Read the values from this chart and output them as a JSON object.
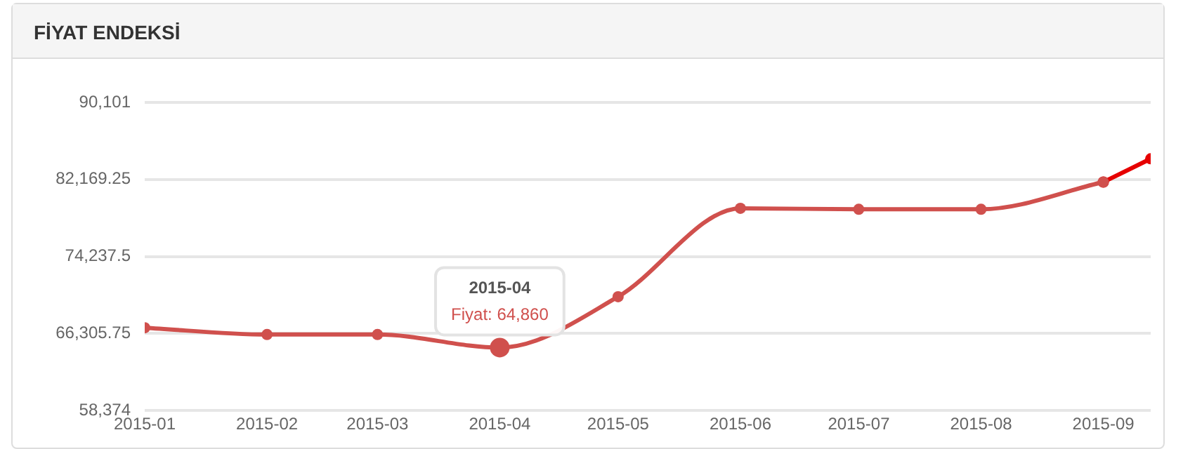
{
  "chart_data": {
    "type": "line",
    "title": "FİYAT ENDEKSİ",
    "x": [
      "2015-01",
      "2015-02",
      "2015-03",
      "2015-04",
      "2015-05",
      "2015-06",
      "2015-07",
      "2015-08",
      "2015-09"
    ],
    "series": [
      {
        "color": "#d0504d",
        "values": [
          66900,
          66200,
          66200,
          64860,
          70100,
          79200,
          79100,
          79100,
          81900
        ]
      },
      {
        "color": "#e60000",
        "x": [
          "2015-09",
          "2015-09-13"
        ],
        "values": [
          81900,
          84300
        ]
      }
    ],
    "xlim": [
      "2015-01",
      "2015-09-13"
    ],
    "xticks": [
      "2015-01",
      "2015-02",
      "2015-03",
      "2015-04",
      "2015-05",
      "2015-06",
      "2015-07",
      "2015-08",
      "2015-09"
    ],
    "ylim": [
      58374,
      90101
    ],
    "yticks": [
      {
        "value": 58374,
        "label": "58,374"
      },
      {
        "value": 66305.75,
        "label": "66,305.75"
      },
      {
        "value": 74237.5,
        "label": "74,237.5"
      },
      {
        "value": 82169.25,
        "label": "82,169.25"
      },
      {
        "value": 90101,
        "label": "90,101"
      }
    ],
    "annotations": [
      {
        "text": "2015-04\nFiyat: 64,860",
        "x": "2015-04",
        "y": 64860
      }
    ],
    "grid": "y",
    "legend": false,
    "marker": "circle",
    "line_style": "solid"
  }
}
